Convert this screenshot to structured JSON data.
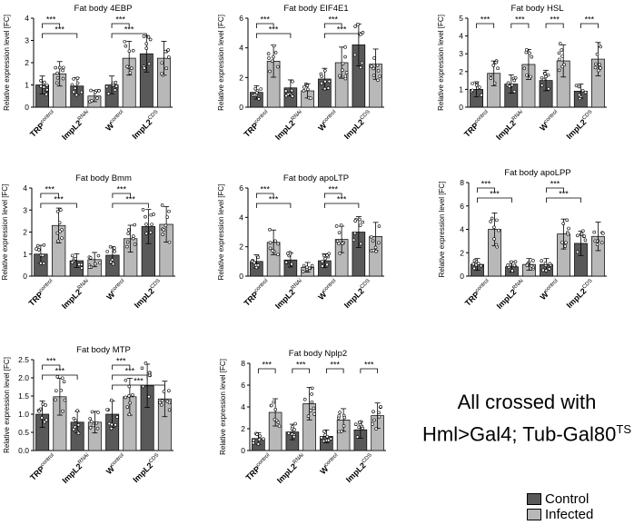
{
  "colors": {
    "control": "#595959",
    "infected": "#b8b8b8"
  },
  "legend": {
    "control_label": "Control",
    "infected_label": "Infected"
  },
  "note": {
    "line1": "All crossed with",
    "line2_main": "Hml>Gal4; Tub-Gal80",
    "line2_sup": "TS"
  },
  "chart_data": [
    {
      "type": "bar",
      "title": "Fat body 4EBP",
      "ylabel": "Relative expression level [FC]",
      "ylim": [
        0,
        4
      ],
      "yticks": [
        0,
        1,
        2,
        3,
        4
      ],
      "categories": [
        "TRP",
        "ImpL2",
        "W",
        "ImpL2"
      ],
      "category_sups": [
        "control",
        "RNAi",
        "control",
        "CDS"
      ],
      "series": [
        {
          "name": "Control",
          "values": [
            1.0,
            0.95,
            1.0,
            2.4
          ]
        },
        {
          "name": "Infected",
          "values": [
            1.5,
            0.5,
            2.2,
            2.2
          ]
        }
      ],
      "significance": [
        {
          "label": "***",
          "from": 0,
          "to": 1
        },
        {
          "label": "***",
          "from": 0,
          "to": 2
        },
        {
          "label": "***",
          "from": 4,
          "to": 5
        },
        {
          "label": "***",
          "from": 4,
          "to": 6
        }
      ]
    },
    {
      "type": "bar",
      "title": "Fat body EIF4E1",
      "ylabel": "Relative expression level [FC]",
      "ylim": [
        0,
        6
      ],
      "yticks": [
        0,
        2,
        4,
        6
      ],
      "categories": [
        "TRP",
        "ImpL2",
        "W",
        "ImpL2"
      ],
      "category_sups": [
        "control",
        "RNAi",
        "control",
        "CDS"
      ],
      "series": [
        {
          "name": "Control",
          "values": [
            1.0,
            1.3,
            1.9,
            4.2
          ]
        },
        {
          "name": "Infected",
          "values": [
            3.1,
            1.1,
            3.0,
            2.9
          ]
        }
      ],
      "significance": [
        {
          "label": "***",
          "from": 0,
          "to": 1
        },
        {
          "label": "***",
          "from": 0,
          "to": 2
        },
        {
          "label": "***",
          "from": 4,
          "to": 5
        },
        {
          "label": "***",
          "from": 4,
          "to": 6
        }
      ]
    },
    {
      "type": "bar",
      "title": "Fat body HSL",
      "ylabel": "Relative expression level [FC]",
      "ylim": [
        0,
        5
      ],
      "yticks": [
        0,
        1,
        2,
        3,
        4,
        5
      ],
      "categories": [
        "TRP",
        "ImpL2",
        "W",
        "ImpL2"
      ],
      "category_sups": [
        "control",
        "RNAi",
        "control",
        "CDS"
      ],
      "series": [
        {
          "name": "Control",
          "values": [
            1.0,
            1.3,
            1.5,
            0.9
          ]
        },
        {
          "name": "Infected",
          "values": [
            1.9,
            2.4,
            2.6,
            2.7
          ]
        }
      ],
      "significance": [
        {
          "label": "***",
          "from": 0,
          "to": 1
        },
        {
          "label": "***",
          "from": 2,
          "to": 3
        },
        {
          "label": "***",
          "from": 4,
          "to": 5
        },
        {
          "label": "***",
          "from": 6,
          "to": 7
        }
      ]
    },
    {
      "type": "bar",
      "title": "Fat body Bmm",
      "ylabel": "Relative expression level [FC]",
      "ylim": [
        0,
        4
      ],
      "yticks": [
        0,
        1,
        2,
        3,
        4
      ],
      "categories": [
        "TRP",
        "ImpL2",
        "W",
        "ImpL2"
      ],
      "category_sups": [
        "control",
        "RNAi",
        "control",
        "CDS"
      ],
      "series": [
        {
          "name": "Control",
          "values": [
            1.0,
            0.7,
            0.95,
            2.25
          ]
        },
        {
          "name": "Infected",
          "values": [
            2.3,
            0.75,
            1.7,
            2.35
          ]
        }
      ],
      "significance": [
        {
          "label": "***",
          "from": 0,
          "to": 1
        },
        {
          "label": "***",
          "from": 0,
          "to": 2
        },
        {
          "label": "***",
          "from": 4,
          "to": 5
        },
        {
          "label": "***",
          "from": 4,
          "to": 6
        }
      ]
    },
    {
      "type": "bar",
      "title": "Fat body apoLTP",
      "ylabel": "Relative expression level [FC]",
      "ylim": [
        0,
        6
      ],
      "yticks": [
        0,
        2,
        4,
        6
      ],
      "categories": [
        "TRP",
        "ImpL2",
        "W",
        "ImpL2"
      ],
      "category_sups": [
        "control",
        "RNAi",
        "control",
        "CDS"
      ],
      "series": [
        {
          "name": "Control",
          "values": [
            1.0,
            1.1,
            1.05,
            3.0
          ]
        },
        {
          "name": "Infected",
          "values": [
            2.3,
            0.6,
            2.5,
            2.7
          ]
        }
      ],
      "significance": [
        {
          "label": "***",
          "from": 0,
          "to": 1
        },
        {
          "label": "***",
          "from": 0,
          "to": 2
        },
        {
          "label": "***",
          "from": 4,
          "to": 5
        },
        {
          "label": "***",
          "from": 4,
          "to": 6
        }
      ]
    },
    {
      "type": "bar",
      "title": "Fat body apoLPP",
      "ylabel": "Relative expression level [FC]",
      "ylim": [
        0,
        8
      ],
      "yticks": [
        0,
        2,
        4,
        6,
        8
      ],
      "categories": [
        "TRP",
        "ImpL2",
        "W",
        "ImpL2"
      ],
      "category_sups": [
        "control",
        "RNAi",
        "control",
        "CDS"
      ],
      "series": [
        {
          "name": "Control",
          "values": [
            1.0,
            0.8,
            1.0,
            2.8
          ]
        },
        {
          "name": "Infected",
          "values": [
            4.0,
            1.0,
            3.6,
            3.4
          ]
        }
      ],
      "significance": [
        {
          "label": "***",
          "from": 0,
          "to": 1
        },
        {
          "label": "***",
          "from": 0,
          "to": 2
        },
        {
          "label": "***",
          "from": 4,
          "to": 5
        },
        {
          "label": "***",
          "from": 4,
          "to": 6
        }
      ]
    },
    {
      "type": "bar",
      "title": "Fat body MTP",
      "ylabel": "Relative expression level [FC]",
      "ylim": [
        0,
        2.5
      ],
      "yticks": [
        0.0,
        0.5,
        1.0,
        1.5,
        2.0,
        2.5
      ],
      "categories": [
        "TRP",
        "ImpL2",
        "W",
        "ImpL2"
      ],
      "category_sups": [
        "control",
        "RNAi",
        "control",
        "CDS"
      ],
      "series": [
        {
          "name": "Control",
          "values": [
            1.0,
            0.78,
            1.0,
            1.78
          ]
        },
        {
          "name": "Infected",
          "values": [
            1.48,
            0.78,
            1.48,
            1.42
          ]
        }
      ],
      "significance": [
        {
          "label": "***",
          "from": 0,
          "to": 1
        },
        {
          "label": "***",
          "from": 0,
          "to": 2
        },
        {
          "label": "***",
          "from": 4,
          "to": 5
        },
        {
          "label": "***",
          "from": 4,
          "to": 6
        },
        {
          "label": "***",
          "from": 4,
          "to": 7
        }
      ]
    },
    {
      "type": "bar",
      "title": "Fat body Nplp2",
      "ylabel": "Relative expression level [FC]",
      "ylim": [
        0,
        8
      ],
      "yticks": [
        0,
        2,
        4,
        6,
        8
      ],
      "categories": [
        "TRP",
        "ImpL2",
        "W",
        "ImpL2"
      ],
      "category_sups": [
        "control",
        "RNAi",
        "control",
        "CDS"
      ],
      "series": [
        {
          "name": "Control",
          "values": [
            1.1,
            1.7,
            1.3,
            1.9
          ]
        },
        {
          "name": "Infected",
          "values": [
            3.5,
            4.3,
            2.8,
            3.2
          ]
        }
      ],
      "significance": [
        {
          "label": "***",
          "from": 0,
          "to": 1
        },
        {
          "label": "***",
          "from": 2,
          "to": 3
        },
        {
          "label": "***",
          "from": 4,
          "to": 5
        },
        {
          "label": "***",
          "from": 6,
          "to": 7
        }
      ]
    }
  ]
}
